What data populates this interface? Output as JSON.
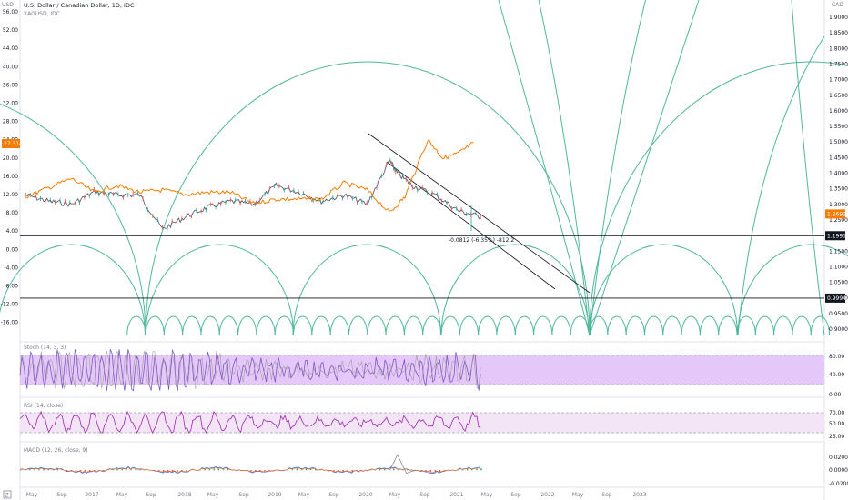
{
  "chart_data": {
    "type": "line",
    "title": "U.S. Dollar / Canadian Dollar, 1D, IDC",
    "subtitle": "XAGUSD, IDC",
    "left_unit": "USD",
    "right_unit": "CAD",
    "left_axis": {
      "ticks": [
        "56.00",
        "52.00",
        "44.00",
        "40.00",
        "36.00",
        "32.00",
        "28.00",
        "24.00",
        "20.00",
        "16.00",
        "12.00",
        "8.00",
        "4.00",
        "0.00",
        "-4.00",
        "-8.00",
        "-12.00",
        "-16.00"
      ]
    },
    "right_axis": {
      "ticks": [
        "1.9000",
        "1.8500",
        "1.8000",
        "1.7500",
        "1.7000",
        "1.6500",
        "1.6000",
        "1.5500",
        "1.5000",
        "1.4500",
        "1.4000",
        "1.3500",
        "1.3000",
        "1.2500",
        "1.1500",
        "1.1000",
        "1.0500",
        "1.0000",
        "0.9500",
        "0.9000"
      ]
    },
    "x_ticks": [
      "May",
      "Sep",
      "2017",
      "May",
      "Sep",
      "2018",
      "May",
      "Sep",
      "2019",
      "May",
      "Sep",
      "2020",
      "May",
      "Sep",
      "2021",
      "May",
      "Sep",
      "2022",
      "May",
      "Sep",
      "2023"
    ],
    "badges": {
      "xag_last": "27.314",
      "usdcad_last": "1.2692",
      "hline_upper": "1.1995",
      "hline_lower": "0.9994"
    },
    "measure_label": "-0.0812 (-6.35%) -812.2",
    "series": [
      {
        "name": "U.S. Dollar / Canadian Dollar",
        "color": "#5d606b",
        "up_color": "#26a69a",
        "down_color": "#ef5350",
        "x": [
          "2016-03",
          "2016-06",
          "2016-09",
          "2016-12",
          "2017-03",
          "2017-06",
          "2017-09",
          "2017-12",
          "2018-03",
          "2018-06",
          "2018-09",
          "2018-12",
          "2019-03",
          "2019-06",
          "2019-09",
          "2019-12",
          "2020-03",
          "2020-04",
          "2020-06",
          "2020-09",
          "2020-12",
          "2021-03"
        ],
        "values": [
          1.33,
          1.31,
          1.3,
          1.34,
          1.33,
          1.33,
          1.22,
          1.26,
          1.29,
          1.31,
          1.3,
          1.36,
          1.34,
          1.31,
          1.33,
          1.3,
          1.44,
          1.4,
          1.36,
          1.33,
          1.28,
          1.26
        ]
      },
      {
        "name": "XAGUSD",
        "color": "#f57c00",
        "x": [
          "2016-03",
          "2016-06",
          "2016-09",
          "2016-12",
          "2017-03",
          "2017-06",
          "2017-09",
          "2017-12",
          "2018-03",
          "2018-06",
          "2018-09",
          "2018-12",
          "2019-03",
          "2019-06",
          "2019-09",
          "2019-12",
          "2020-03",
          "2020-05",
          "2020-08",
          "2020-10",
          "2020-12",
          "2021-02"
        ],
        "values": [
          15.5,
          17.5,
          19.5,
          16.5,
          18.0,
          16.5,
          17.0,
          16.0,
          16.5,
          16.5,
          14.0,
          15.0,
          15.0,
          15.0,
          18.5,
          17.0,
          12.0,
          15.5,
          28.0,
          24.0,
          25.0,
          27.3
        ]
      }
    ],
    "indicators": [
      {
        "name": "Stoch (14, 3, 3)",
        "ticks": [
          "80.00",
          "40.00",
          "0.00"
        ],
        "band": [
          20,
          80
        ]
      },
      {
        "name": "RSI (14, close)",
        "ticks": [
          "70.00",
          "50.00",
          "25.00"
        ],
        "band": [
          30,
          70
        ]
      },
      {
        "name": "MACD (12, 26, close, 9)",
        "ticks": [
          "0.0200",
          "0.0000",
          "-0.0200"
        ]
      }
    ],
    "colors": {
      "arc": "#4fb89a",
      "stoch": "#7e57c2",
      "stoch_band": "#e1bef9",
      "rsi": "#9c27b0",
      "rsi_band": "#f3e5f5",
      "usdcad_badge": "#f57c00",
      "xag_badge": "#f57c00",
      "dark_badge": "#131722"
    }
  }
}
